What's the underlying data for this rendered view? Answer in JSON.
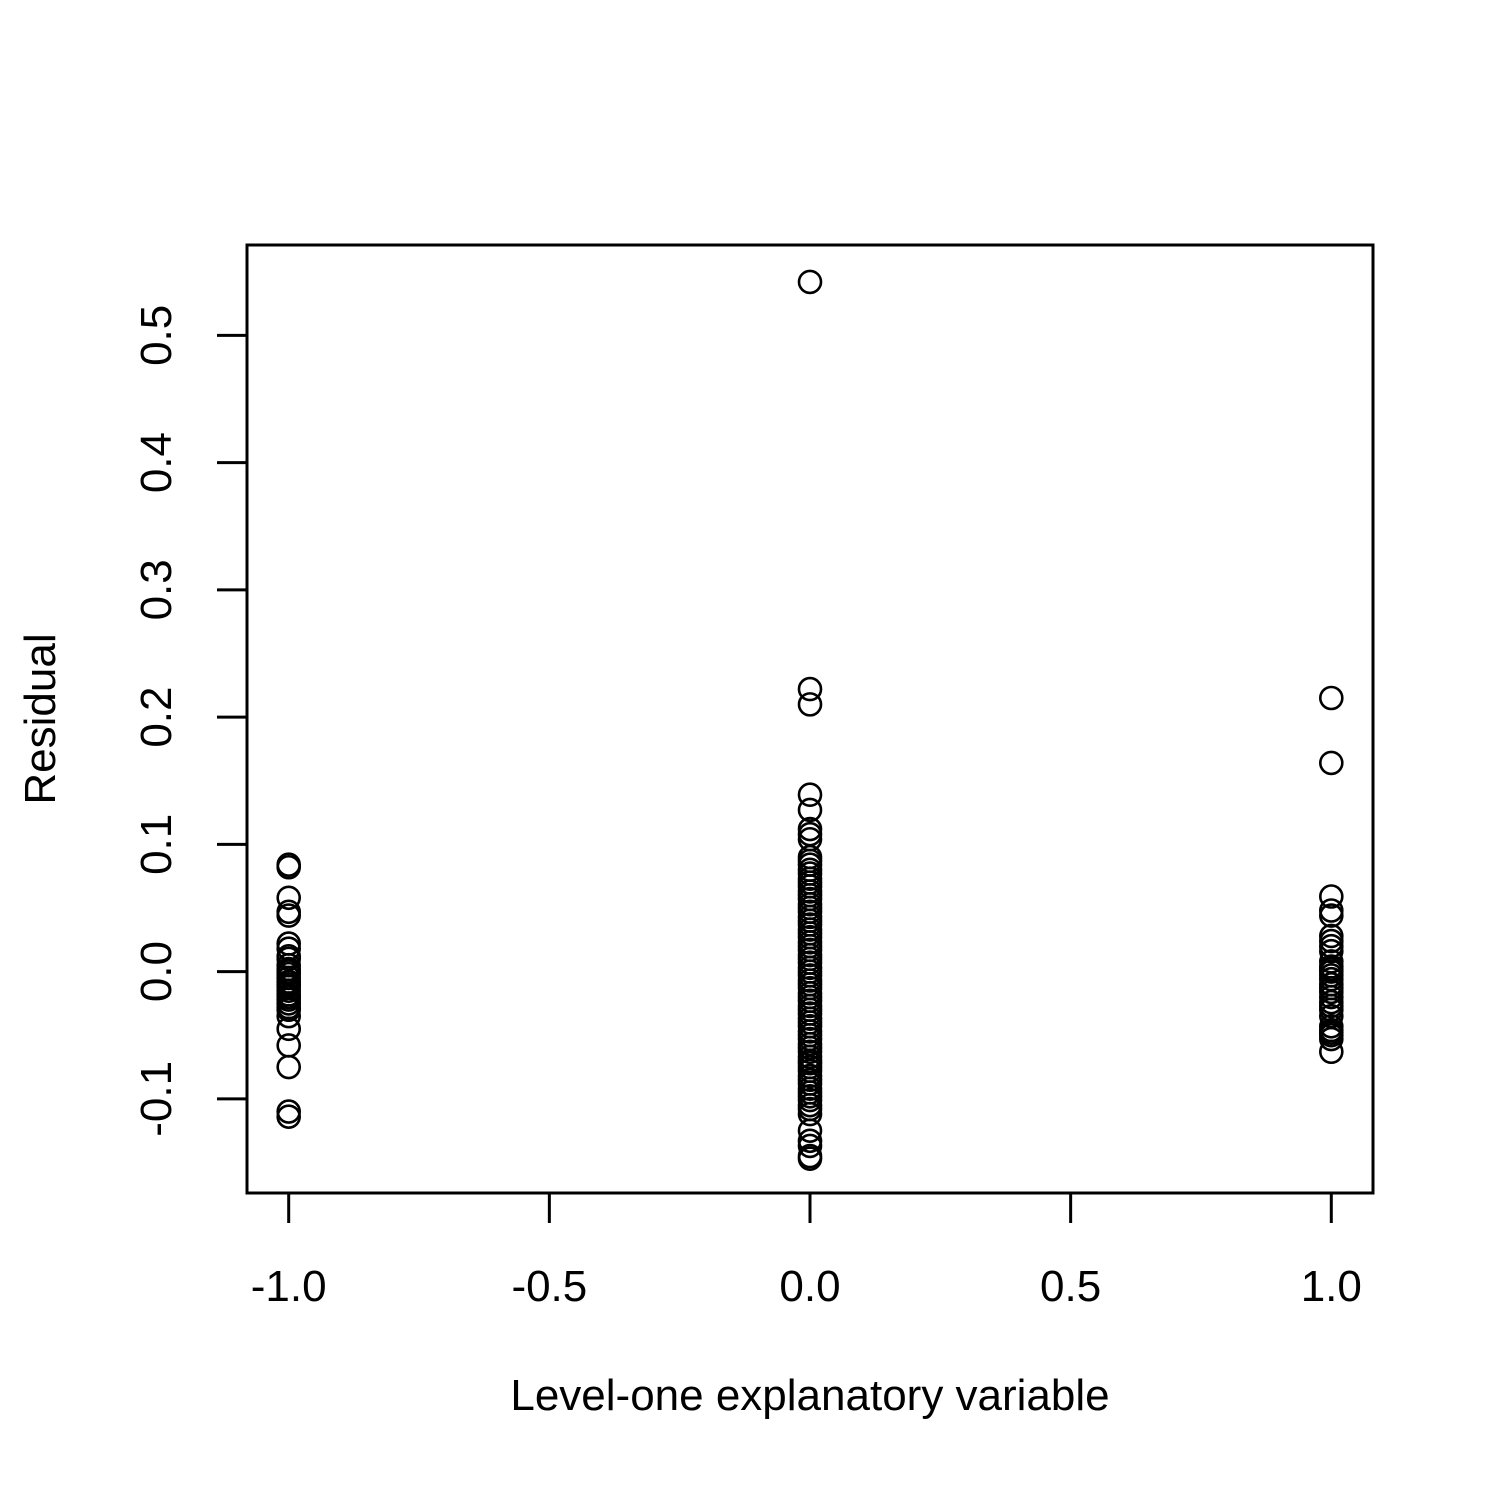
{
  "chart_data": {
    "type": "scatter",
    "title": "",
    "xlabel": "Level-one explanatory variable",
    "ylabel": "Residual",
    "xlim": [
      -1.08,
      1.08
    ],
    "ylim": [
      -0.174,
      0.571
    ],
    "xticks": [
      -1.0,
      -0.5,
      0.0,
      0.5,
      1.0
    ],
    "xtick_labels": [
      "-1.0",
      "-0.5",
      "0.0",
      "0.5",
      "1.0"
    ],
    "yticks": [
      -0.1,
      0.0,
      0.1,
      0.2,
      0.3,
      0.4,
      0.5
    ],
    "ytick_labels": [
      "-0.1",
      "0.0",
      "0.1",
      "0.2",
      "0.3",
      "0.4",
      "0.5"
    ],
    "grid": false,
    "legend": "none",
    "marker": "open-circle",
    "series": [
      {
        "x": [
          -1,
          -1,
          -1,
          -1,
          -1,
          -1,
          -1,
          -1,
          -1,
          -1,
          -1,
          -1,
          -1,
          -1,
          -1,
          -1,
          -1,
          -1,
          -1,
          -1,
          -1,
          -1,
          -1,
          -1,
          -1,
          -1,
          -1,
          -1,
          -1,
          -1
        ],
        "y": [
          0.084,
          0.082,
          0.058,
          0.047,
          0.044,
          0.022,
          0.018,
          0.012,
          0.01,
          0.005,
          0.002,
          0.0,
          -0.002,
          -0.005,
          -0.008,
          -0.01,
          -0.012,
          -0.015,
          -0.018,
          -0.02,
          -0.022,
          -0.025,
          -0.028,
          -0.03,
          -0.035,
          -0.045,
          -0.058,
          -0.075,
          -0.11,
          -0.114
        ]
      },
      {
        "x": [
          0,
          0,
          0,
          0,
          0,
          0,
          0,
          0,
          0,
          0,
          0,
          0,
          0,
          0,
          0,
          0,
          0,
          0,
          0,
          0,
          0,
          0,
          0,
          0,
          0,
          0,
          0,
          0,
          0,
          0,
          0,
          0,
          0,
          0,
          0,
          0,
          0,
          0,
          0,
          0,
          0,
          0,
          0,
          0,
          0,
          0,
          0,
          0,
          0,
          0,
          0,
          0,
          0,
          0,
          0,
          0,
          0,
          0,
          0,
          0,
          0,
          0,
          0,
          0,
          0,
          0,
          0,
          0,
          0,
          0,
          0,
          0,
          0,
          0,
          0
        ],
        "y": [
          0.542,
          0.222,
          0.21,
          0.139,
          0.127,
          0.112,
          0.108,
          0.104,
          0.09,
          0.087,
          0.084,
          0.08,
          0.077,
          0.073,
          0.07,
          0.067,
          0.063,
          0.06,
          0.057,
          0.053,
          0.05,
          0.047,
          0.043,
          0.04,
          0.037,
          0.033,
          0.03,
          0.027,
          0.023,
          0.02,
          0.017,
          0.013,
          0.01,
          0.007,
          0.003,
          0.0,
          -0.003,
          -0.007,
          -0.01,
          -0.013,
          -0.017,
          -0.02,
          -0.023,
          -0.027,
          -0.03,
          -0.033,
          -0.037,
          -0.04,
          -0.043,
          -0.047,
          -0.05,
          -0.053,
          -0.057,
          -0.06,
          -0.063,
          -0.067,
          -0.07,
          -0.072,
          -0.075,
          -0.078,
          -0.082,
          -0.085,
          -0.088,
          -0.092,
          -0.095,
          -0.098,
          -0.101,
          -0.105,
          -0.108,
          -0.112,
          -0.125,
          -0.133,
          -0.137,
          -0.145,
          -0.147
        ]
      },
      {
        "x": [
          1,
          1,
          1,
          1,
          1,
          1,
          1,
          1,
          1,
          1,
          1,
          1,
          1,
          1,
          1,
          1,
          1,
          1,
          1,
          1,
          1,
          1,
          1,
          1,
          1,
          1,
          1,
          1,
          1
        ],
        "y": [
          0.215,
          0.164,
          0.059,
          0.048,
          0.044,
          0.028,
          0.024,
          0.02,
          0.016,
          0.008,
          0.004,
          0.002,
          0.0,
          -0.003,
          -0.006,
          -0.01,
          -0.013,
          -0.016,
          -0.02,
          -0.024,
          -0.027,
          -0.03,
          -0.035,
          -0.043,
          -0.046,
          -0.048,
          -0.05,
          -0.053,
          -0.063
        ]
      }
    ]
  }
}
